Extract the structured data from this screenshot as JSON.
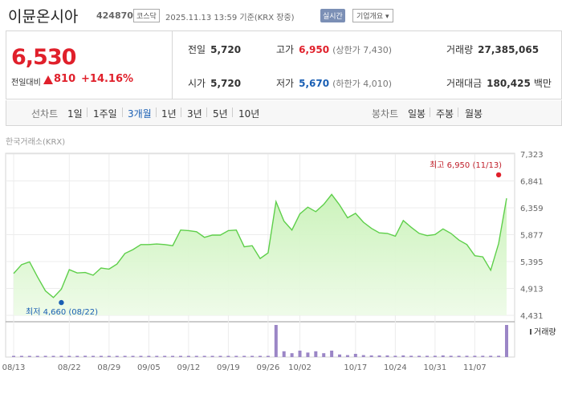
{
  "header": {
    "name": "이뮨온시아",
    "code": "424870",
    "market": "코스닥",
    "datetime": "2025.11.13  13:59  기준(KRX 장중)",
    "realtime_label": "실시간",
    "overview_label": "기업개요 ▾"
  },
  "quote": {
    "price": "6,530",
    "change_label": "전일대비",
    "change_value": "810",
    "change_rate": "+14.16%",
    "prev_label": "전일",
    "prev_value": "5,720",
    "open_label": "시가",
    "open_value": "5,720",
    "high_label": "고가",
    "high_value": "6,950",
    "upper_limit": "(상한가 7,430)",
    "low_label": "저가",
    "low_value": "5,670",
    "lower_limit": "(하한가 4,010)",
    "volume_label": "거래량",
    "volume_value": "27,385,065",
    "amount_label": "거래대금",
    "amount_value": "180,425",
    "amount_unit": "백만"
  },
  "periodbar": {
    "line_label": "선차트",
    "line_periods": [
      "1일",
      "1주일",
      "3개월",
      "1년",
      "3년",
      "5년",
      "10년"
    ],
    "active": "3개월",
    "candle_label": "봉차트",
    "candle_periods": [
      "일봉",
      "주봉",
      "월봉"
    ]
  },
  "exchange_label": "한국거래소(KRX)",
  "colors": {
    "up": "#e0202b",
    "down": "#1a5fb4",
    "line": "#5ecf4a",
    "volume": "#9b86c6"
  },
  "chart_data": {
    "type": "area",
    "y_ticks": [
      "7,323",
      "6,841",
      "6,359",
      "5,877",
      "5,395",
      "4,913",
      "4,431"
    ],
    "ylim": [
      4431,
      7323
    ],
    "x_ticks": [
      "08/13",
      "08/22",
      "08/29",
      "09/05",
      "09/12",
      "09/19",
      "09/26",
      "10/02",
      "10/17",
      "10/24",
      "10/31",
      "11/07"
    ],
    "x_tick_index": [
      0,
      7,
      12,
      17,
      22,
      27,
      32,
      36,
      43,
      48,
      53,
      58
    ],
    "high_label": "최고 6,950 (11/13)",
    "low_label": "최저 4,660 (08/22)",
    "high_index": 61,
    "high_value": 6950,
    "low_index": 6,
    "low_value": 4660,
    "volume_legend": "거래량",
    "prices": [
      5180,
      5340,
      5390,
      5120,
      4870,
      4750,
      4900,
      5250,
      5190,
      5200,
      5150,
      5280,
      5260,
      5350,
      5540,
      5610,
      5700,
      5700,
      5710,
      5700,
      5680,
      5960,
      5950,
      5930,
      5830,
      5870,
      5870,
      5950,
      5960,
      5660,
      5680,
      5450,
      5550,
      6470,
      6120,
      5960,
      6250,
      6370,
      6290,
      6420,
      6600,
      6410,
      6180,
      6260,
      6100,
      5990,
      5910,
      5900,
      5850,
      6130,
      6010,
      5900,
      5860,
      5880,
      5980,
      5900,
      5780,
      5700,
      5500,
      5480,
      5240,
      5720,
      6530
    ],
    "volumes": [
      0.03,
      0.03,
      0.03,
      0.03,
      0.03,
      0.03,
      0.04,
      0.03,
      0.03,
      0.04,
      0.03,
      0.03,
      0.03,
      0.03,
      0.03,
      0.03,
      0.03,
      0.03,
      0.03,
      0.03,
      0.03,
      0.03,
      0.03,
      0.03,
      0.03,
      0.03,
      0.03,
      0.03,
      0.03,
      0.03,
      0.03,
      0.03,
      0.03,
      1.0,
      0.18,
      0.12,
      0.2,
      0.14,
      0.18,
      0.12,
      0.2,
      0.08,
      0.06,
      0.1,
      0.06,
      0.05,
      0.05,
      0.05,
      0.04,
      0.05,
      0.04,
      0.04,
      0.04,
      0.04,
      0.05,
      0.04,
      0.04,
      0.04,
      0.04,
      0.04,
      0.04,
      0.04,
      1.0
    ]
  }
}
